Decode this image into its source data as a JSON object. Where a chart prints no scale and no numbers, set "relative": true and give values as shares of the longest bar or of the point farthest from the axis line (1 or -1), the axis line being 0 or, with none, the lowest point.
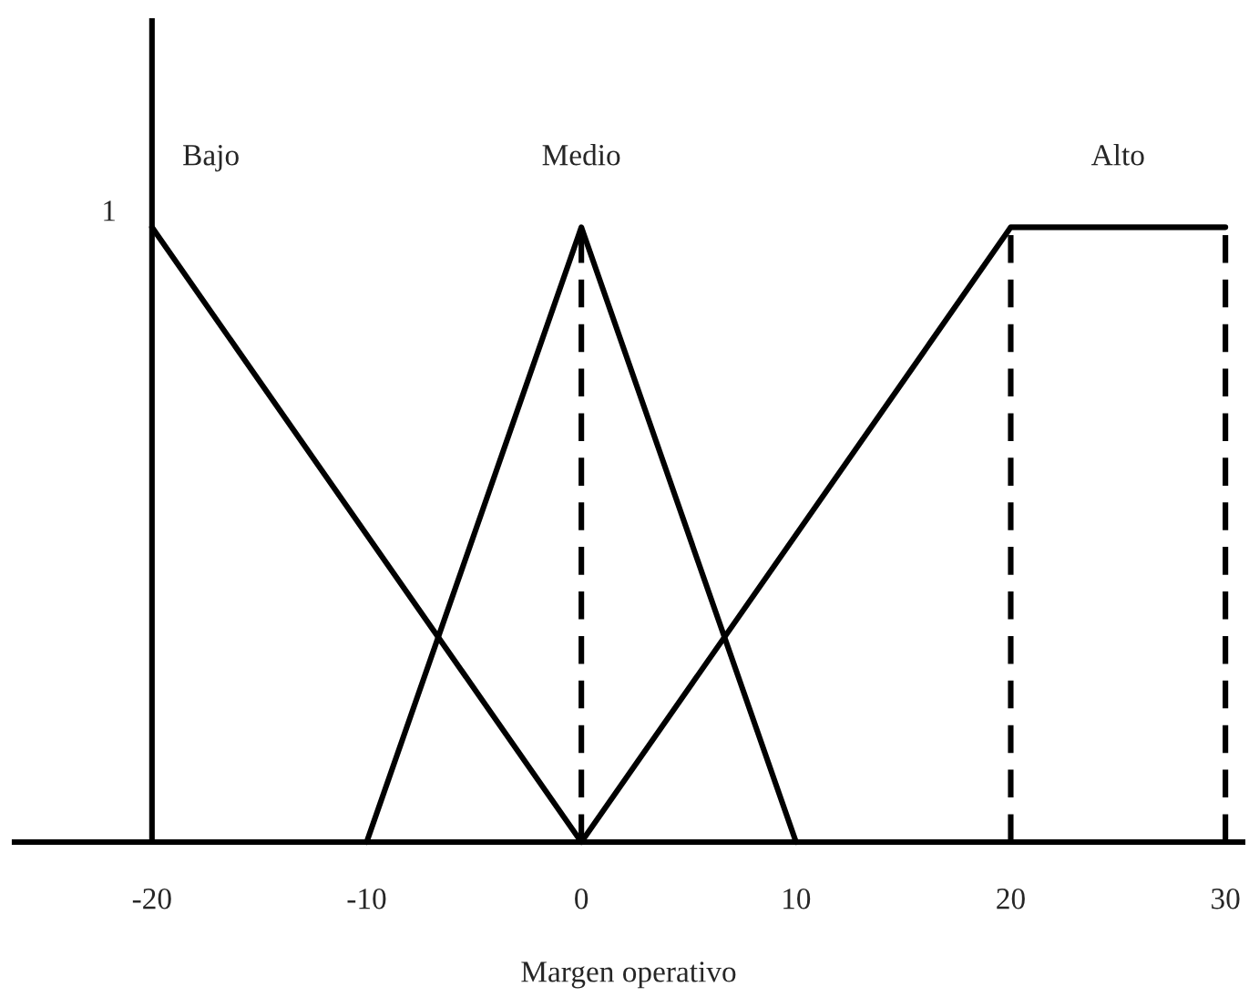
{
  "chart_data": {
    "type": "line",
    "relative": true,
    "xlabel": "Margen operativo",
    "xlim": [
      -26.4,
      30.8
    ],
    "xticks": [
      -20,
      -10,
      0,
      10,
      20,
      30
    ],
    "series": [
      {
        "name": "Bajo",
        "color": "#000000",
        "x": [
          -20,
          0
        ],
        "values": [
          1,
          0
        ]
      },
      {
        "name": "Medio",
        "color": "#000000",
        "x": [
          -10,
          0,
          10
        ],
        "values": [
          0,
          1,
          0
        ]
      },
      {
        "name": "Alto",
        "color": "#000000",
        "x": [
          0,
          20,
          30
        ],
        "values": [
          0,
          1,
          1
        ]
      }
    ],
    "ref_lines": [
      {
        "axis": "x",
        "value": -20,
        "color": "#000000",
        "line_style": "solid"
      },
      {
        "axis": "x",
        "value": 0,
        "color": "#000000",
        "line_style": "dashed"
      },
      {
        "axis": "x",
        "value": 20,
        "color": "#000000",
        "line_style": "dashed"
      },
      {
        "axis": "x",
        "value": 30,
        "color": "#000000",
        "line_style": "dashed"
      }
    ],
    "annotations": [
      {
        "text": "1",
        "x": -20,
        "y": 1
      }
    ],
    "grid": false,
    "legend": false,
    "marker": "none",
    "line_style": "solid"
  }
}
